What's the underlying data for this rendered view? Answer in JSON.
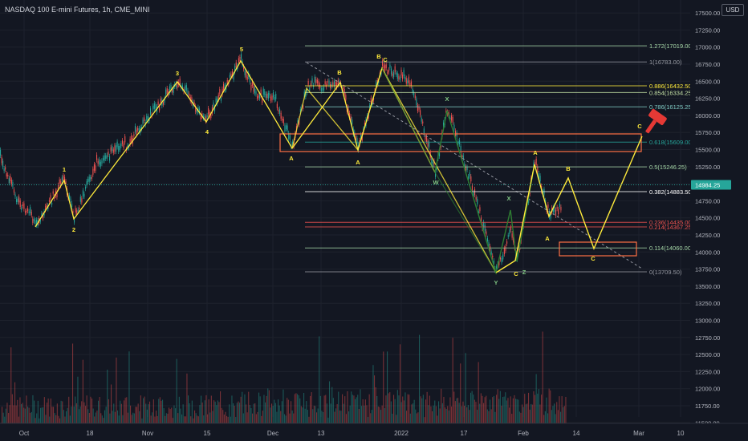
{
  "title": "NASDAQ 100 E-mini Futures, 1h, CME_MINI",
  "currency": "USD",
  "last_price": "14984.25",
  "colors": {
    "background": "#131722",
    "up": "#26a69a",
    "down": "#ef5350",
    "wave": "#ffeb3b",
    "corrective": "#2e7d32",
    "fib_line": "#5c8a5c",
    "zone": "#ff7043",
    "hammer": "#e53935"
  },
  "y_axis": {
    "min": 11500,
    "max": 17750,
    "ticks": [
      "17500.00",
      "17250.00",
      "17000.00",
      "16750.00",
      "16500.00",
      "16250.00",
      "16000.00",
      "15750.00",
      "15500.00",
      "15250.00",
      "15000.00",
      "14750.00",
      "14500.00",
      "14250.00",
      "14000.00",
      "13750.00",
      "13500.00",
      "13250.00",
      "13000.00",
      "12750.00",
      "12500.00",
      "12250.00",
      "12000.00",
      "11750.00",
      "11500.00"
    ]
  },
  "x_axis": {
    "labels": [
      "Oct",
      "18",
      "Nov",
      "15",
      "Dec",
      "13",
      "2022",
      "17",
      "Feb",
      "14",
      "Mar",
      "10"
    ]
  },
  "fib_levels": [
    {
      "label": "1.272(17019.00)",
      "price": 17019.0,
      "color": "#a5d6a7"
    },
    {
      "label": "1(16783.00)",
      "price": 16783.0,
      "color": "#9598a1"
    },
    {
      "label": "0.886(16432.50)",
      "price": 16432.5,
      "color": "#ffeb3b"
    },
    {
      "label": "0.854(16334.25)",
      "price": 16334.25,
      "color": "#c5e1a5"
    },
    {
      "label": "0.786(16125.25)",
      "price": 16125.25,
      "color": "#80cbc4"
    },
    {
      "label": "0.618(15609.00)",
      "price": 15609.0,
      "color": "#26a69a"
    },
    {
      "label": "0.5(15246.25)",
      "price": 15246.25,
      "color": "#a5d6a7"
    },
    {
      "label": "0.382(14883.50)",
      "price": 14883.5,
      "color": "#ffffff"
    },
    {
      "label": "0.236(14435.00)",
      "price": 14435.0,
      "color": "#ef5350"
    },
    {
      "label": "0.214(14367.25)",
      "price": 14367.25,
      "color": "#ef5350"
    },
    {
      "label": "0.114(14060.00)",
      "price": 14060.0,
      "color": "#a5d6a7"
    },
    {
      "label": "0(13709.50)",
      "price": 13709.5,
      "color": "#9598a1"
    }
  ],
  "wave_labels": [
    {
      "text": "1"
    },
    {
      "text": "2"
    },
    {
      "text": "3"
    },
    {
      "text": "4"
    },
    {
      "text": "5"
    },
    {
      "text": "A"
    },
    {
      "text": "B"
    },
    {
      "text": "A"
    },
    {
      "text": "B"
    },
    {
      "text": "C"
    },
    {
      "text": "X"
    },
    {
      "text": "W"
    },
    {
      "text": "X"
    },
    {
      "text": "Y"
    },
    {
      "text": "C"
    },
    {
      "text": "Z"
    },
    {
      "text": "A"
    },
    {
      "text": "B"
    },
    {
      "text": "A"
    },
    {
      "text": "C"
    },
    {
      "text": "C"
    }
  ]
}
